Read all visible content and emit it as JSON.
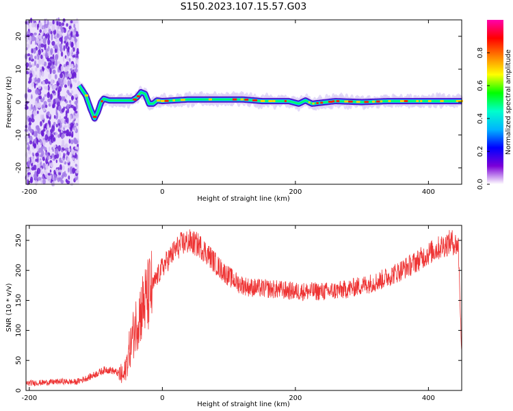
{
  "figure_title": "S150.2023.107.15.57.G03",
  "chart_data": [
    {
      "type": "heatmap",
      "xlabel": "Height of straight line (km)",
      "ylabel": "Frequency (Hz)",
      "xlim": [
        -205,
        450
      ],
      "ylim": [
        -25,
        25
      ],
      "xticks": [
        -200,
        0,
        200,
        400
      ],
      "yticks": [
        -20,
        -10,
        0,
        10,
        20
      ],
      "grid": false,
      "noise_region_x": [
        -205,
        -125
      ],
      "ridge": {
        "x": [
          -125,
          -115,
          -108,
          -102,
          -97,
          -92,
          -88,
          -80,
          -70,
          -55,
          -45,
          -38,
          -32,
          -26,
          -20,
          -14,
          -8,
          0,
          40,
          80,
          120,
          150,
          190,
          205,
          215,
          225,
          260,
          300,
          340,
          380,
          420,
          450
        ],
        "y": [
          5,
          2,
          -2,
          -5,
          -3,
          0,
          1,
          0.5,
          0.5,
          0.5,
          0.5,
          1.5,
          3,
          2.5,
          -0.5,
          -0.5,
          0.5,
          0.3,
          0.8,
          0.8,
          0.8,
          0.3,
          0.3,
          -0.5,
          0.5,
          -0.5,
          0.3,
          0,
          0.3,
          0.3,
          0.3,
          0.3
        ]
      }
    },
    {
      "type": "line",
      "xlabel": "Height of straight line (km)",
      "ylabel": "SNR (10 * v/v)",
      "xlim": [
        -205,
        450
      ],
      "ylim": [
        0,
        275
      ],
      "xticks": [
        -200,
        0,
        200,
        400
      ],
      "yticks": [
        0,
        50,
        100,
        150,
        200,
        250
      ],
      "grid": false,
      "series": [
        {
          "color": "#ee3333",
          "x": [
            -205,
            -180,
            -150,
            -130,
            -110,
            -95,
            -85,
            -75,
            -65,
            -58,
            -50,
            -40,
            -30,
            -20,
            -10,
            0,
            10,
            20,
            30,
            40,
            55,
            70,
            85,
            100,
            115,
            130,
            150,
            175,
            200,
            225,
            250,
            275,
            300,
            325,
            350,
            375,
            400,
            420,
            435,
            445,
            450
          ],
          "y": [
            12,
            13,
            15,
            14,
            22,
            30,
            35,
            33,
            28,
            22,
            65,
            110,
            140,
            160,
            185,
            205,
            220,
            235,
            245,
            248,
            242,
            225,
            205,
            190,
            178,
            172,
            170,
            168,
            165,
            165,
            165,
            168,
            175,
            182,
            195,
            210,
            228,
            240,
            248,
            240,
            60
          ]
        }
      ]
    }
  ],
  "colorbar": {
    "label": "Normalized spectral amplitude",
    "ticks": [
      "0.0",
      "0.2",
      "0.4",
      "0.6",
      "0.8"
    ],
    "tick_values": [
      0,
      0.2,
      0.4,
      0.6,
      0.8
    ],
    "range": [
      0,
      1
    ],
    "colormap": [
      "#ffffff",
      "#7b00d8",
      "#0000ff",
      "#00b4ff",
      "#00ffcc",
      "#00ff00",
      "#ffff00",
      "#ff8000",
      "#ff0000",
      "#ff00aa"
    ]
  }
}
